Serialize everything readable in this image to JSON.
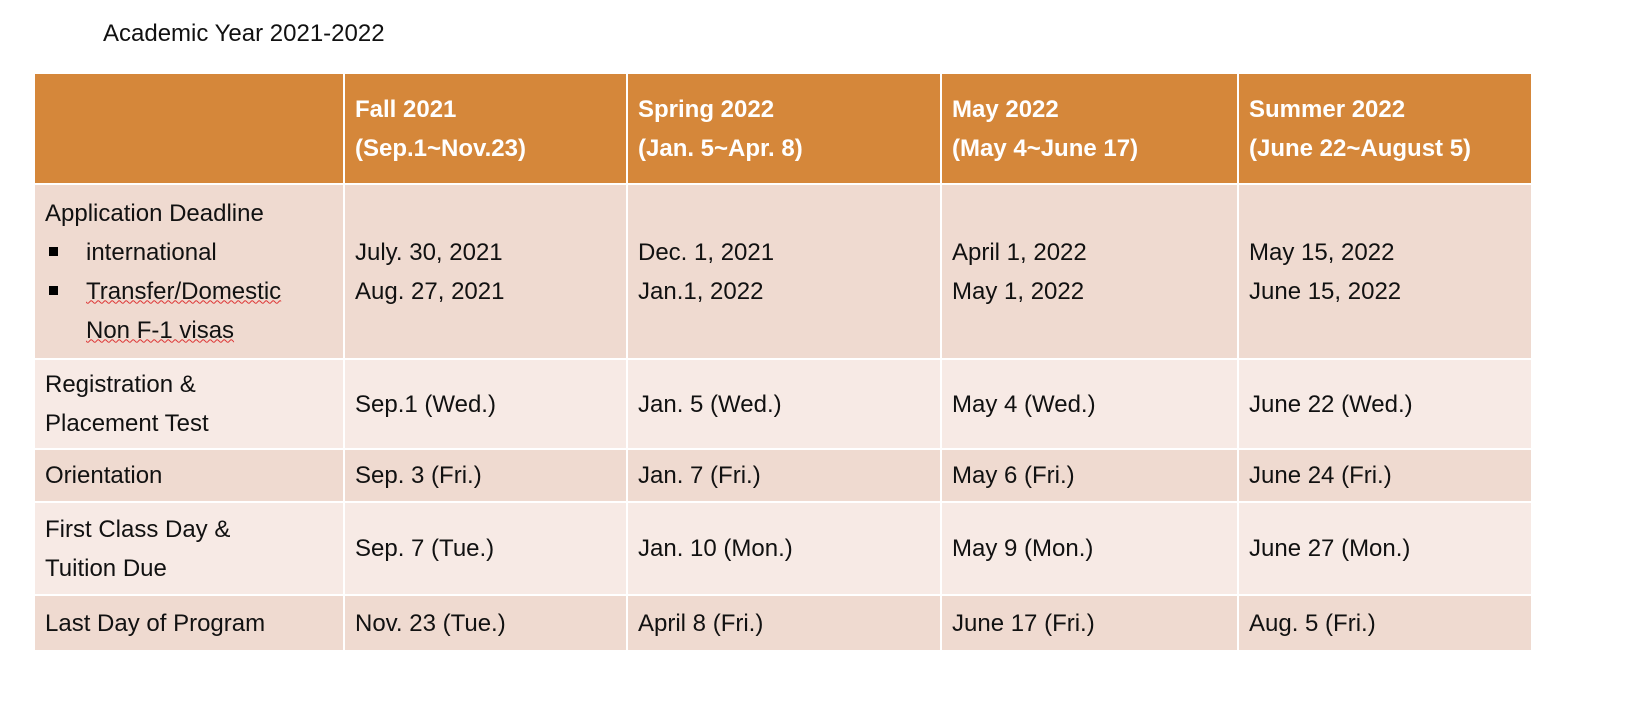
{
  "title": "Academic Year 2021-2022",
  "columns": [
    {
      "name": "Fall 2021",
      "range": "(Sep.1~Nov.23)"
    },
    {
      "name": "Spring 2022",
      "range": "(Jan. 5~Apr. 8)"
    },
    {
      "name": "May 2022",
      "range": "(May 4~June 17)"
    },
    {
      "name": "Summer 2022",
      "range": "(June 22~August 5)"
    }
  ],
  "application": {
    "label": "Application Deadline",
    "sub1": "international",
    "sub2": "Transfer/Domestic",
    "sub3": "Non F-1 visas",
    "values": [
      [
        "July. 30, 2021",
        "Aug. 27, 2021"
      ],
      [
        "Dec. 1, 2021",
        "Jan.1, 2022"
      ],
      [
        "April 1, 2022",
        "May 1, 2022"
      ],
      [
        "May 15, 2022",
        "June 15, 2022"
      ]
    ]
  },
  "rows": [
    {
      "label1": "Registration &",
      "label2": "Placement Test",
      "values": [
        "Sep.1 (Wed.)",
        "Jan. 5 (Wed.)",
        "May 4 (Wed.)",
        "June 22 (Wed.)"
      ]
    },
    {
      "label1": "Orientation",
      "label2": "",
      "values": [
        "Sep. 3 (Fri.)",
        "Jan. 7 (Fri.)",
        "May 6 (Fri.)",
        "June 24 (Fri.)"
      ]
    },
    {
      "label1": "First Class Day &",
      "label2": "Tuition Due",
      "values": [
        "Sep. 7 (Tue.)",
        "Jan. 10 (Mon.)",
        "May 9 (Mon.)",
        "June 27 (Mon.)"
      ]
    },
    {
      "label1": "Last Day of Program",
      "label2": "",
      "values": [
        "Nov. 23 (Tue.)",
        "April 8 (Fri.)",
        "June 17 (Fri.)",
        "Aug. 5 (Fri.)"
      ]
    }
  ],
  "colors": {
    "header": "#D5873A",
    "row_odd": "#EFDAD0",
    "row_even": "#F7EAE5"
  }
}
